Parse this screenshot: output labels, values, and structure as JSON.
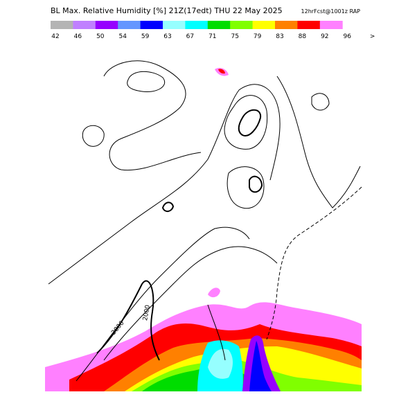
{
  "header": {
    "title": "BL Max. Relative Humidity [%] 21Z(17edt) THU 22 May 2025",
    "forecast": "12hrFcst@1001z RAP"
  },
  "legend": {
    "labels": [
      "42",
      "46",
      "50",
      "54",
      "59",
      "63",
      "67",
      "71",
      "75",
      "79",
      "83",
      "88",
      "92",
      "96",
      ">"
    ],
    "colors": [
      "#b4b4b4",
      "#c080ff",
      "#9600ff",
      "#6496ff",
      "#0000ff",
      "#96ffff",
      "#00ffff",
      "#00dd00",
      "#80ff00",
      "#ffff00",
      "#ff8000",
      "#ff0000",
      "#ff80ff"
    ]
  },
  "map": {
    "contour_labels": [
      "2000",
      "2000"
    ]
  }
}
